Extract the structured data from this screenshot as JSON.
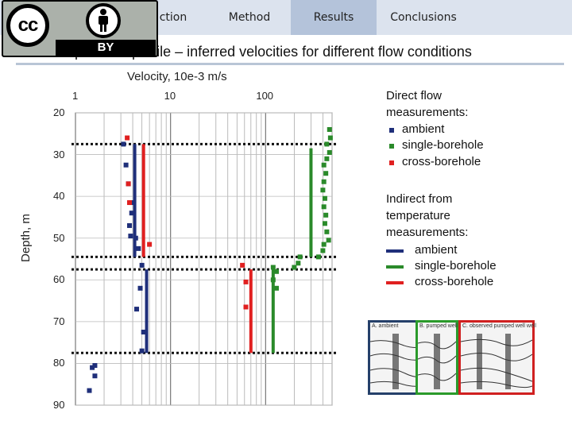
{
  "nav": {
    "tabs": [
      {
        "label": "ction",
        "active": false
      },
      {
        "label": "Method",
        "active": false
      },
      {
        "label": "Results",
        "active": true
      },
      {
        "label": "Conclusions",
        "active": false
      }
    ]
  },
  "license": {
    "cc_text": "cc",
    "by_text": "BY"
  },
  "slide": {
    "title": "Temperature profile – inferred velocities for different flow conditions"
  },
  "legend": {
    "direct_title_1": "Direct flow",
    "direct_title_2": "measurements:",
    "direct_items": [
      "ambient",
      "single-borehole",
      "cross-borehole"
    ],
    "indirect_title_1": "Indirect from",
    "indirect_title_2": "temperature",
    "indirect_title_3": "measurements:",
    "indirect_items": [
      "ambient",
      "single-borehole",
      "cross-borehole"
    ],
    "colors": {
      "ambient": "#1f2f7a",
      "single": "#2a8a2a",
      "cross": "#e02020"
    }
  },
  "insets": [
    {
      "label": "A. ambient",
      "border": "#25406a"
    },
    {
      "label": "B. pumped well",
      "border": "#2a9a2a"
    },
    {
      "label": "C. observed pumped well well",
      "border": "#d02020"
    }
  ],
  "chart_data": {
    "type": "scatter",
    "xlabel": "Velocity, 10e-3 m/s",
    "ylabel": "Depth, m",
    "x_scale": "log",
    "xlim": [
      1,
      500
    ],
    "ylim": [
      20,
      90
    ],
    "x_ticks": [
      "1",
      "10",
      "100"
    ],
    "y_ticks": [
      "20",
      "30",
      "40",
      "50",
      "60",
      "70",
      "80",
      "90"
    ],
    "boundary_depths": [
      27.5,
      54.5,
      57.5,
      77.5
    ],
    "series": [
      {
        "name": "ambient",
        "kind": "points",
        "color": "#1f2f7a",
        "points": [
          [
            3.2,
            27.5
          ],
          [
            3.4,
            32.5
          ],
          [
            3.6,
            37
          ],
          [
            3.9,
            41.5
          ],
          [
            3.9,
            44
          ],
          [
            3.7,
            47
          ],
          [
            3.8,
            49.5
          ],
          [
            4.3,
            50
          ],
          [
            4.6,
            52.5
          ],
          [
            5.0,
            56.5
          ],
          [
            4.8,
            62
          ],
          [
            4.4,
            67
          ],
          [
            5.2,
            72.5
          ],
          [
            5.0,
            77
          ],
          [
            1.6,
            80.5
          ],
          [
            1.5,
            81
          ],
          [
            1.6,
            83
          ],
          [
            1.4,
            86.5
          ]
        ]
      },
      {
        "name": "single-borehole",
        "kind": "points",
        "color": "#2a8a2a",
        "points": [
          [
            470,
            24
          ],
          [
            480,
            26
          ],
          [
            440,
            27.5
          ],
          [
            470,
            29.5
          ],
          [
            440,
            31
          ],
          [
            410,
            32.5
          ],
          [
            430,
            34.5
          ],
          [
            410,
            36.5
          ],
          [
            400,
            38.5
          ],
          [
            420,
            40.5
          ],
          [
            410,
            42.5
          ],
          [
            430,
            44.5
          ],
          [
            420,
            46.5
          ],
          [
            440,
            48.5
          ],
          [
            460,
            50.5
          ],
          [
            410,
            51.5
          ],
          [
            400,
            53
          ],
          [
            360,
            54.5
          ],
          [
            230,
            54.5
          ],
          [
            220,
            56
          ],
          [
            200,
            57
          ],
          [
            120,
            57
          ],
          [
            130,
            58
          ],
          [
            120,
            60
          ],
          [
            130,
            62
          ]
        ]
      },
      {
        "name": "cross-borehole",
        "kind": "points",
        "color": "#e02020",
        "points": [
          [
            3.5,
            26
          ],
          [
            3.6,
            37
          ],
          [
            3.7,
            41.5
          ],
          [
            6.0,
            51.5
          ],
          [
            57,
            56.5
          ],
          [
            62,
            60.5
          ],
          [
            62,
            66.5
          ]
        ]
      },
      {
        "name": "ambient",
        "kind": "segments",
        "color": "#1f2f7a",
        "segments": [
          [
            4.2,
            27.5,
            54.5
          ],
          [
            5.6,
            57.5,
            77.5
          ]
        ]
      },
      {
        "name": "single-borehole",
        "kind": "segments",
        "color": "#2a8a2a",
        "segments": [
          [
            300,
            28.5,
            54.5
          ],
          [
            120,
            57.5,
            77.5
          ]
        ]
      },
      {
        "name": "cross-borehole",
        "kind": "segments",
        "color": "#e02020",
        "segments": [
          [
            5.2,
            27.5,
            54.5
          ],
          [
            70,
            57.5,
            77.5
          ]
        ]
      }
    ]
  }
}
